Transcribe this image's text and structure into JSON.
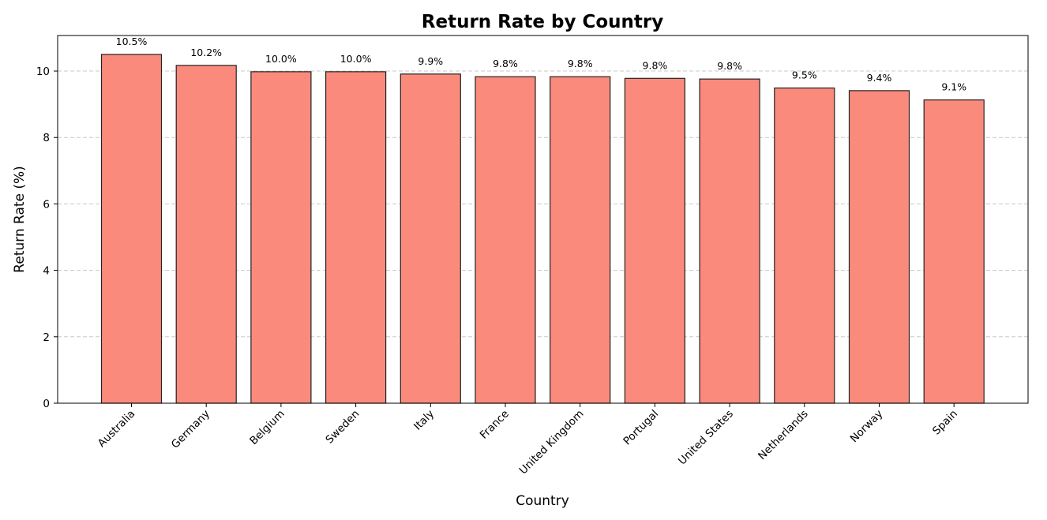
{
  "chart_data": {
    "type": "bar",
    "title": "Return Rate by Country",
    "xlabel": "Country",
    "ylabel": "Return Rate (%)",
    "categories": [
      "Australia",
      "Germany",
      "Belgium",
      "Sweden",
      "Italy",
      "France",
      "United Kingdom",
      "Portugal",
      "United States",
      "Netherlands",
      "Norway",
      "Spain"
    ],
    "values": [
      10.5,
      10.17,
      9.98,
      9.98,
      9.91,
      9.83,
      9.83,
      9.78,
      9.76,
      9.49,
      9.41,
      9.13
    ],
    "data_labels": [
      "10.5%",
      "10.2%",
      "10.0%",
      "10.0%",
      "9.9%",
      "9.8%",
      "9.8%",
      "9.8%",
      "9.8%",
      "9.5%",
      "9.4%",
      "9.1%"
    ],
    "ylim": [
      0,
      11.07
    ],
    "yticks": [
      0,
      2,
      4,
      6,
      8,
      10
    ],
    "grid": "y-dashed",
    "colors": {
      "bar_fill": "#fa8b7c",
      "bar_edge": "#222222",
      "grid": "#c8c8c8"
    }
  }
}
